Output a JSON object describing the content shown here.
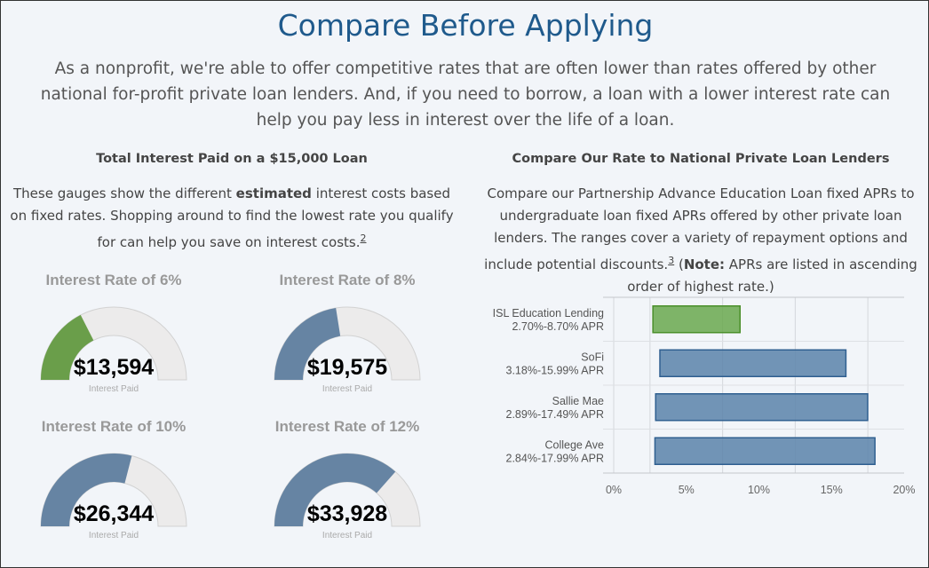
{
  "title": "Compare Before Applying",
  "intro": "As a nonprofit, we're able to offer competitive rates that are often lower than rates offered by other national for-profit private loan lenders. And, if you need to borrow, a loan with a lower interest rate can help you pay less in interest over the life of a loan.",
  "left": {
    "heading": "Total Interest Paid on a $15,000 Loan",
    "desc_pre": "These gauges show the different ",
    "desc_bold": "estimated",
    "desc_post": " interest costs based on fixed rates. Shopping around to find the lowest rate you qualify for can help you save on interest costs.",
    "footnote": "2"
  },
  "gauges": [
    {
      "label": "Interest Rate of 6%",
      "value": "$13,594",
      "sub": "Interest Paid",
      "fraction": 0.35,
      "color": "#6a9e4a"
    },
    {
      "label": "Interest Rate of 8%",
      "value": "$19,575",
      "sub": "Interest Paid",
      "fraction": 0.45,
      "color": "#6684a3"
    },
    {
      "label": "Interest Rate of 10%",
      "value": "$26,344",
      "sub": "Interest Paid",
      "fraction": 0.58,
      "color": "#6684a3"
    },
    {
      "label": "Interest Rate of 12%",
      "value": "$33,928",
      "sub": "Interest Paid",
      "fraction": 0.73,
      "color": "#6684a3"
    }
  ],
  "right": {
    "heading": "Compare Our Rate to National Private Loan Lenders",
    "desc_pre": "Compare our Partnership Advance Education Loan fixed APRs to undergraduate loan fixed APRs offered by other private loan lenders. The ranges cover a variety of repayment options and include potential discounts.",
    "footnote": "3",
    "desc_mid": " (",
    "desc_bold": "Note:",
    "desc_post": " APRs are listed in ascending order of highest rate.)"
  },
  "chart_data": {
    "type": "bar",
    "orientation": "horizontal",
    "floating": true,
    "categories": [
      "ISL Education Lending",
      "SoFi",
      "Sallie Mae",
      "College Ave"
    ],
    "sublabels": [
      "2.70%-8.70% APR",
      "3.18%-15.99% APR",
      "2.89%-17.49% APR",
      "2.84%-17.99% APR"
    ],
    "ranges": [
      [
        2.7,
        8.7
      ],
      [
        3.18,
        15.99
      ],
      [
        2.89,
        17.49
      ],
      [
        2.84,
        17.99
      ]
    ],
    "colors": [
      "#6aa84f",
      "#5b82aa",
      "#5b82aa",
      "#5b82aa"
    ],
    "xlim": [
      0,
      20
    ],
    "xticks": [
      "0%",
      "5%",
      "10%",
      "15%",
      "20%"
    ]
  }
}
